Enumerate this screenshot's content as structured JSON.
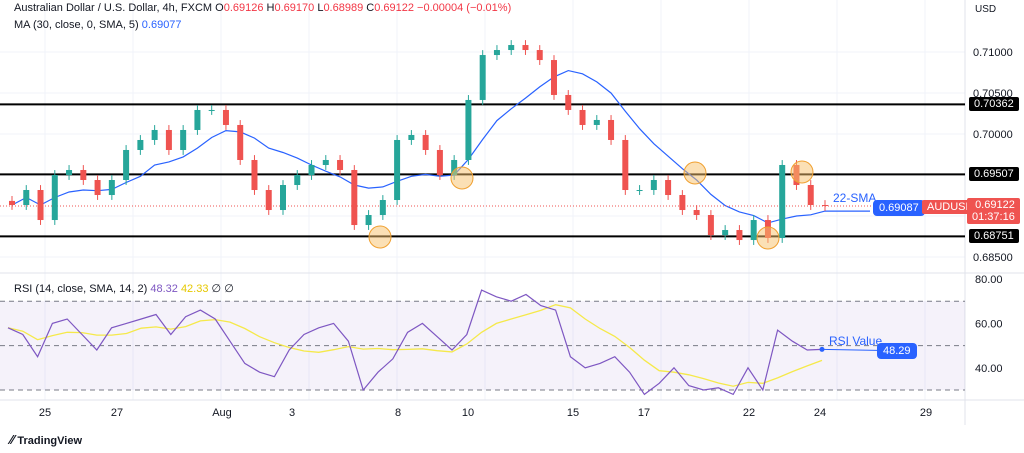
{
  "header": {
    "symbol": "Australian Dollar / U.S. Dollar, 4h, FXCM",
    "o_label": "O",
    "o": "0.69126",
    "h_label": "H",
    "h": "0.69170",
    "l_label": "L",
    "l": "0.68989",
    "c_label": "C",
    "c": "0.69122",
    "change": "−0.00004 (−0.01%)"
  },
  "ma_legend": {
    "label": "MA (30, close, 0, SMA, 5)",
    "value": "0.69077"
  },
  "rsi_legend": {
    "label": "RSI (14, close, SMA, 14, 2)",
    "value": "48.32",
    "sma": "42.33",
    "x1": "∅",
    "x2": "∅"
  },
  "axis": {
    "currency": "USD",
    "price_ticks": [
      "0.71000",
      "0.70500",
      "0.70000",
      "0.68500"
    ],
    "rsi_ticks": [
      "80.00",
      "60.00",
      "40.00"
    ],
    "date_ticks": [
      "25",
      "27",
      "Aug",
      "3",
      "8",
      "10",
      "15",
      "17",
      "22",
      "24",
      "29"
    ]
  },
  "levels": {
    "l1": "0.70362",
    "l2": "0.69507",
    "l3": "0.68751"
  },
  "labels": {
    "sma_value": "0.69087",
    "symbol": "AUDUSD",
    "price": "0.69122",
    "countdown": "01:37:16",
    "sma_text": "22-SMA",
    "rsi_text": "RSI Value",
    "rsi_value": "48.29"
  },
  "brand": "TradingView",
  "colors": {
    "up": "#26a69a",
    "down": "#ef5350",
    "ma": "#2962ff",
    "rsi": "#7e57c2",
    "rsi_sma": "#f5e94a",
    "highlight": "#f7c26b"
  },
  "chart_data": {
    "type": "candlestick",
    "ylim": [
      0.6835,
      0.7155
    ],
    "levels": [
      0.70362,
      0.69507,
      0.68751
    ],
    "closes": [
      0.69134,
      0.69317,
      0.68951,
      0.695,
      0.69561,
      0.69439,
      0.69256,
      0.69439,
      0.69805,
      0.69927,
      0.70049,
      0.69805,
      0.70049,
      0.70293,
      0.70293,
      0.7011,
      0.69683,
      0.69317,
      0.69073,
      0.69378,
      0.695,
      0.69622,
      0.69683,
      0.69561,
      0.6889,
      0.69012,
      0.69195,
      0.69927,
      0.69988,
      0.69805,
      0.695,
      0.69683,
      0.70415,
      0.70963,
      0.71024,
      0.71085,
      0.71024,
      0.70902,
      0.70476,
      0.70293,
      0.7011,
      0.70171,
      0.69927,
      0.69317,
      0.69317,
      0.69439,
      0.69256,
      0.69073,
      0.69012,
      0.68768,
      0.68829,
      0.68707,
      0.68951,
      0.68732,
      0.69622,
      0.69378,
      0.69134,
      0.69122
    ],
    "rsi": [
      58,
      55,
      45,
      60,
      62,
      55,
      48,
      58,
      60,
      62,
      64,
      55,
      63,
      66,
      62,
      52,
      42,
      38,
      36,
      48,
      55,
      58,
      60,
      52,
      30,
      38,
      44,
      56,
      60,
      54,
      48,
      55,
      75,
      72,
      70,
      73,
      68,
      66,
      45,
      40,
      42,
      45,
      38,
      28,
      33,
      40,
      32,
      30,
      31,
      28,
      40,
      30,
      57,
      52,
      48,
      48.29
    ],
    "rsi_ylim": [
      25,
      85
    ],
    "rsi_bands": [
      70,
      50,
      30
    ]
  }
}
